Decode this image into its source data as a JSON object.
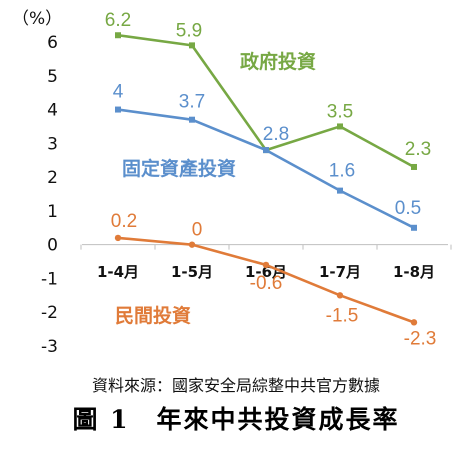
{
  "chart_data": {
    "type": "line",
    "unit_label": "（%）",
    "categories": [
      "1-4月",
      "1-5月",
      "1-6月",
      "1-7月",
      "1-8月"
    ],
    "ylim": [
      -3,
      6
    ],
    "yticks": [
      "6",
      "5",
      "4",
      "3",
      "2",
      "1",
      "0",
      "-1",
      "-2",
      "-3"
    ],
    "grid": false,
    "series": [
      {
        "name": "政府投資",
        "values": [
          6.2,
          5.9,
          2.8,
          3.5,
          2.3
        ],
        "labels": [
          "6.2",
          "5.9",
          "",
          "3.5",
          "2.3"
        ],
        "color": "#77a844",
        "marker": "square"
      },
      {
        "name": "固定資產投資",
        "values": [
          4,
          3.7,
          2.8,
          1.6,
          0.5
        ],
        "labels": [
          "4",
          "3.7",
          "2.8",
          "1.6",
          "0.5"
        ],
        "color": "#5b8fcc",
        "marker": "square"
      },
      {
        "name": "民間投資",
        "values": [
          0.2,
          0,
          -0.6,
          -1.5,
          -2.3
        ],
        "labels": [
          "0.2",
          "0",
          "-0.6",
          "-1.5",
          "-2.3"
        ],
        "color": "#e07b39",
        "marker": "circle"
      }
    ]
  },
  "source": "資料來源：國家安全局綜整中共官方數據",
  "caption": "圖 1　年來中共投資成長率"
}
